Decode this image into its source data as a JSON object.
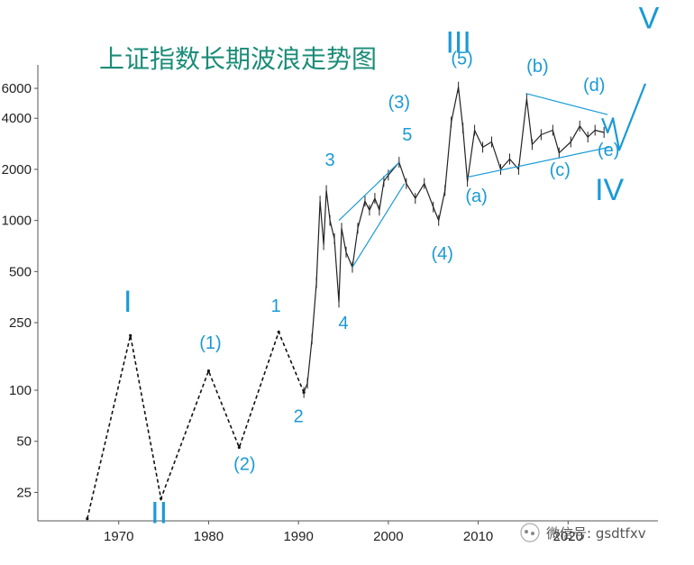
{
  "chart_data": {
    "type": "line",
    "title": "上证指数长期波浪走势图",
    "x_axis": {
      "ticks": [
        1970,
        1980,
        1990,
        2000,
        2010,
        2020
      ],
      "range": [
        1961,
        2030
      ]
    },
    "y_axis": {
      "scale": "log",
      "ticks": [
        25,
        50,
        100,
        250,
        500,
        1000,
        2000,
        4000,
        6000
      ],
      "range": [
        17,
        7300
      ]
    },
    "series": [
      {
        "style": "dashed",
        "points": [
          [
            1966.5,
            17.5
          ],
          [
            1971.3,
            210
          ],
          [
            1974.7,
            23
          ],
          [
            1980,
            130
          ],
          [
            1983.4,
            46
          ],
          [
            1987.8,
            220
          ],
          [
            1990.6,
            97
          ]
        ]
      },
      {
        "style": "price",
        "points": [
          [
            1990.6,
            97
          ],
          [
            1991,
            110
          ],
          [
            1991.5,
            200
          ],
          [
            1992,
            430
          ],
          [
            1992.4,
            1300
          ],
          [
            1992.8,
            720
          ],
          [
            1993.1,
            1500
          ],
          [
            1993.5,
            1000
          ],
          [
            1994,
            780
          ],
          [
            1994.5,
            330
          ],
          [
            1994.8,
            900
          ],
          [
            1995.3,
            650
          ],
          [
            1996,
            530
          ],
          [
            1996.6,
            900
          ],
          [
            1997.4,
            1300
          ],
          [
            1997.9,
            1150
          ],
          [
            1998.5,
            1350
          ],
          [
            1999,
            1150
          ],
          [
            1999.5,
            1700
          ],
          [
            2000,
            1850
          ],
          [
            2001.2,
            2200
          ],
          [
            2002,
            1650
          ],
          [
            2003,
            1350
          ],
          [
            2004,
            1650
          ],
          [
            2005,
            1200
          ],
          [
            2005.6,
            1000
          ],
          [
            2006.3,
            1500
          ],
          [
            2007,
            3800
          ],
          [
            2007.8,
            6100
          ],
          [
            2008.3,
            3500
          ],
          [
            2008.8,
            1700
          ],
          [
            2009.6,
            3400
          ],
          [
            2010.5,
            2700
          ],
          [
            2011.5,
            2900
          ],
          [
            2012.5,
            2000
          ],
          [
            2013.5,
            2300
          ],
          [
            2014.5,
            2000
          ],
          [
            2015.4,
            5200
          ],
          [
            2016,
            2800
          ],
          [
            2017,
            3200
          ],
          [
            2018.3,
            3400
          ],
          [
            2019,
            2500
          ],
          [
            2020.3,
            2900
          ],
          [
            2021.3,
            3600
          ],
          [
            2022.2,
            3100
          ],
          [
            2023,
            3400
          ],
          [
            2024,
            3300
          ]
        ]
      }
    ],
    "trendlines": [
      {
        "points": [
          [
            1994.5,
            1000
          ],
          [
            2001.2,
            2200
          ]
        ]
      },
      {
        "points": [
          [
            1996,
            530
          ],
          [
            2001.8,
            1650
          ]
        ]
      },
      {
        "points": [
          [
            2008.8,
            1800
          ],
          [
            2024.6,
            2700
          ]
        ]
      },
      {
        "points": [
          [
            2015.3,
            5600
          ],
          [
            2024.4,
            4200
          ]
        ]
      }
    ],
    "projection": {
      "points": [
        [
          2023.8,
          4000
        ],
        [
          2024.4,
          3300
        ],
        [
          2025,
          4000
        ],
        [
          2025.7,
          2600
        ],
        [
          2028.6,
          6400
        ]
      ]
    },
    "wave_labels": [
      {
        "text": "I",
        "x": 1971,
        "y": 290,
        "size": "major"
      },
      {
        "text": "II",
        "x": 1974.5,
        "y": 16.5,
        "size": "major"
      },
      {
        "text": "III",
        "x": 2007.8,
        "y": 9700,
        "size": "major"
      },
      {
        "text": "IV",
        "x": 2024.6,
        "y": 1320,
        "size": "major"
      },
      {
        "text": "V",
        "x": 2029,
        "y": 13500,
        "size": "major"
      },
      {
        "text": "(1)",
        "x": 1980.2,
        "y": 175,
        "size": "minor"
      },
      {
        "text": "(2)",
        "x": 1984,
        "y": 34,
        "size": "minor"
      },
      {
        "text": "1",
        "x": 1987.5,
        "y": 290,
        "size": "minor"
      },
      {
        "text": "2",
        "x": 1990,
        "y": 65,
        "size": "minor"
      },
      {
        "text": "3",
        "x": 1993.5,
        "y": 2100,
        "size": "minor"
      },
      {
        "text": "4",
        "x": 1995,
        "y": 230,
        "size": "minor"
      },
      {
        "text": "5",
        "x": 2002.1,
        "y": 2950,
        "size": "minor"
      },
      {
        "text": "(3)",
        "x": 2001.2,
        "y": 4600,
        "size": "minor"
      },
      {
        "text": "(4)",
        "x": 2006,
        "y": 590,
        "size": "minor"
      },
      {
        "text": "(5)",
        "x": 2008.2,
        "y": 8300,
        "size": "minor"
      },
      {
        "text": "(a)",
        "x": 2009.8,
        "y": 1290,
        "size": "minor"
      },
      {
        "text": "(b)",
        "x": 2016.6,
        "y": 7500,
        "size": "minor"
      },
      {
        "text": "(c)",
        "x": 2019.1,
        "y": 1830,
        "size": "minor"
      },
      {
        "text": "(d)",
        "x": 2022.9,
        "y": 5800,
        "size": "minor"
      },
      {
        "text": "(e)",
        "x": 2024.5,
        "y": 2400,
        "size": "minor"
      }
    ]
  },
  "watermark": {
    "text": "微信号: gsdtfxv",
    "icon": "wechat-icon"
  },
  "colors": {
    "wave": "#1a9ad6",
    "title": "#1a8c78",
    "price": "#222222"
  }
}
